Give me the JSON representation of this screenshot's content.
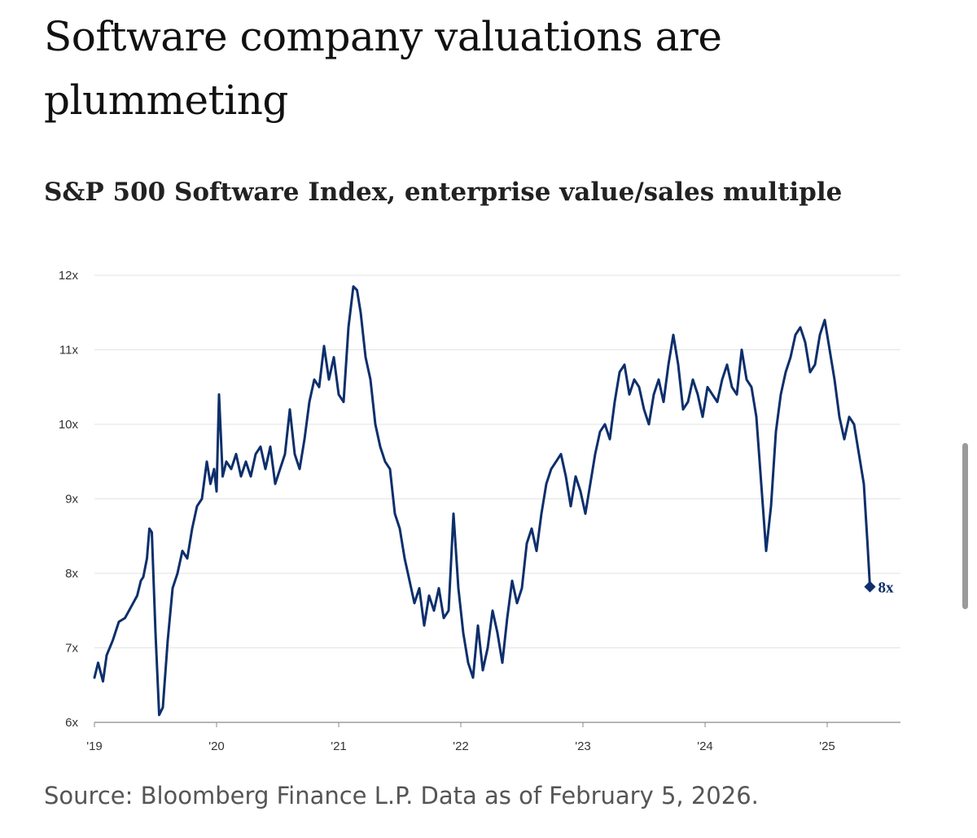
{
  "title": "Software company valuations are plummeting",
  "subtitle": "S&P 500 Software Index, enterprise value/sales multiple",
  "source": "Source: Bloomberg Finance L.P. Data as of February 5, 2026.",
  "colors": {
    "line": "#0d2f6b",
    "grid": "#e3e3e3",
    "axis": "#8a8a8a",
    "text": "#111111"
  },
  "chart_data": {
    "type": "line",
    "title": "Software company valuations are plummeting",
    "subtitle": "S&P 500 Software Index, enterprise value/sales multiple",
    "xlabel": "",
    "ylabel": "",
    "xlim": [
      2019.0,
      2025.6
    ],
    "ylim": [
      6,
      12
    ],
    "y_ticks": [
      {
        "value": 6,
        "label": "6x"
      },
      {
        "value": 7,
        "label": "7x"
      },
      {
        "value": 8,
        "label": "8x"
      },
      {
        "value": 9,
        "label": "9x"
      },
      {
        "value": 10,
        "label": "10x"
      },
      {
        "value": 11,
        "label": "11x"
      },
      {
        "value": 12,
        "label": "12x"
      }
    ],
    "x_ticks": [
      {
        "value": 2019,
        "label": "'19"
      },
      {
        "value": 2020,
        "label": "'20"
      },
      {
        "value": 2021,
        "label": "'21"
      },
      {
        "value": 2022,
        "label": "'22"
      },
      {
        "value": 2023,
        "label": "'23"
      },
      {
        "value": 2024,
        "label": "'24"
      },
      {
        "value": 2025,
        "label": "'25"
      }
    ],
    "grid": true,
    "series": [
      {
        "name": "S&P 500 Software Index EV/Sales",
        "x": [
          2019.0,
          2019.03,
          2019.07,
          2019.1,
          2019.15,
          2019.2,
          2019.25,
          2019.3,
          2019.35,
          2019.38,
          2019.4,
          2019.43,
          2019.45,
          2019.47,
          2019.5,
          2019.53,
          2019.56,
          2019.6,
          2019.64,
          2019.68,
          2019.72,
          2019.76,
          2019.8,
          2019.84,
          2019.88,
          2019.92,
          2019.95,
          2019.98,
          2020.0,
          2020.02,
          2020.05,
          2020.08,
          2020.12,
          2020.16,
          2020.2,
          2020.24,
          2020.28,
          2020.32,
          2020.36,
          2020.4,
          2020.44,
          2020.48,
          2020.52,
          2020.56,
          2020.6,
          2020.64,
          2020.68,
          2020.72,
          2020.76,
          2020.8,
          2020.84,
          2020.88,
          2020.92,
          2020.96,
          2021.0,
          2021.04,
          2021.08,
          2021.12,
          2021.15,
          2021.18,
          2021.22,
          2021.26,
          2021.3,
          2021.34,
          2021.38,
          2021.42,
          2021.46,
          2021.5,
          2021.54,
          2021.58,
          2021.62,
          2021.66,
          2021.7,
          2021.74,
          2021.78,
          2021.82,
          2021.86,
          2021.9,
          2021.94,
          2021.98,
          2022.02,
          2022.06,
          2022.1,
          2022.14,
          2022.18,
          2022.22,
          2022.26,
          2022.3,
          2022.34,
          2022.38,
          2022.42,
          2022.46,
          2022.5,
          2022.54,
          2022.58,
          2022.62,
          2022.66,
          2022.7,
          2022.74,
          2022.78,
          2022.82,
          2022.86,
          2022.9,
          2022.94,
          2022.98,
          2023.02,
          2023.06,
          2023.1,
          2023.14,
          2023.18,
          2023.22,
          2023.26,
          2023.3,
          2023.34,
          2023.38,
          2023.42,
          2023.46,
          2023.5,
          2023.54,
          2023.58,
          2023.62,
          2023.66,
          2023.7,
          2023.74,
          2023.78,
          2023.82,
          2023.86,
          2023.9,
          2023.94,
          2023.98,
          2024.02,
          2024.06,
          2024.1,
          2024.14,
          2024.18,
          2024.22,
          2024.26,
          2024.3,
          2024.34,
          2024.38,
          2024.42,
          2024.46,
          2024.5,
          2024.54,
          2024.58,
          2024.62,
          2024.66,
          2024.7,
          2024.74,
          2024.78,
          2024.82,
          2024.86,
          2024.9,
          2024.94,
          2024.98,
          2025.02,
          2025.06,
          2025.1,
          2025.14,
          2025.18,
          2025.22,
          2025.26,
          2025.3,
          2025.33,
          2025.35
        ],
        "values": [
          6.6,
          6.8,
          6.55,
          6.9,
          7.1,
          7.35,
          7.4,
          7.55,
          7.7,
          7.9,
          7.95,
          8.2,
          8.6,
          8.55,
          7.2,
          6.1,
          6.2,
          7.1,
          7.8,
          8.0,
          8.3,
          8.2,
          8.6,
          8.9,
          9.0,
          9.5,
          9.2,
          9.4,
          9.1,
          10.4,
          9.3,
          9.5,
          9.4,
          9.6,
          9.3,
          9.5,
          9.3,
          9.6,
          9.7,
          9.4,
          9.7,
          9.2,
          9.4,
          9.6,
          10.2,
          9.6,
          9.4,
          9.8,
          10.3,
          10.6,
          10.5,
          11.05,
          10.6,
          10.9,
          10.4,
          10.3,
          11.3,
          11.85,
          11.8,
          11.5,
          10.9,
          10.6,
          10.0,
          9.7,
          9.5,
          9.4,
          8.8,
          8.6,
          8.2,
          7.9,
          7.6,
          7.8,
          7.3,
          7.7,
          7.5,
          7.8,
          7.4,
          7.5,
          8.8,
          7.8,
          7.2,
          6.8,
          6.6,
          7.3,
          6.7,
          7.0,
          7.5,
          7.2,
          6.8,
          7.4,
          7.9,
          7.6,
          7.8,
          8.4,
          8.6,
          8.3,
          8.8,
          9.2,
          9.4,
          9.5,
          9.6,
          9.3,
          8.9,
          9.3,
          9.1,
          8.8,
          9.2,
          9.6,
          9.9,
          10.0,
          9.8,
          10.3,
          10.7,
          10.8,
          10.4,
          10.6,
          10.5,
          10.2,
          10.0,
          10.4,
          10.6,
          10.3,
          10.8,
          11.2,
          10.8,
          10.2,
          10.3,
          10.6,
          10.4,
          10.1,
          10.5,
          10.4,
          10.3,
          10.6,
          10.8,
          10.5,
          10.4,
          11.0,
          10.6,
          10.5,
          10.1,
          9.2,
          8.3,
          8.9,
          9.9,
          10.4,
          10.7,
          10.9,
          11.2,
          11.3,
          11.1,
          10.7,
          10.8,
          11.2,
          11.4,
          11.0,
          10.6,
          10.1,
          9.8,
          10.1,
          10.0,
          9.6,
          9.2,
          8.4,
          7.82
        ]
      }
    ],
    "end_marker": {
      "x": 2025.35,
      "value": 7.82,
      "label": "8x"
    }
  }
}
